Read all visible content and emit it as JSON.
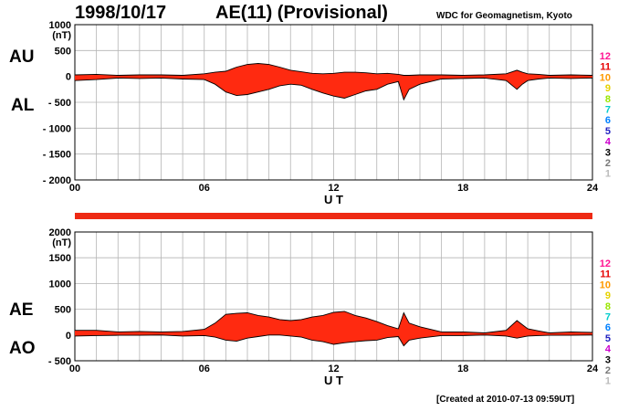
{
  "header": {
    "date": "1998/10/17",
    "title": "AE(11) (Provisional)",
    "source": "WDC for Geomagnetism, Kyoto"
  },
  "footer": {
    "created": "[Created at 2010-07-13 09:59UT]"
  },
  "colors": {
    "fill": "#ff2a10",
    "bar": "#ee2a14",
    "grid": "#b4b4b4",
    "outline": "#000000"
  },
  "legend_numbers": [
    {
      "label": "12",
      "color": "#ff1493"
    },
    {
      "label": "11",
      "color": "#e60000"
    },
    {
      "label": "10",
      "color": "#ff9900"
    },
    {
      "label": "9",
      "color": "#e6d200"
    },
    {
      "label": "8",
      "color": "#99e600"
    },
    {
      "label": "7",
      "color": "#00cccc"
    },
    {
      "label": "6",
      "color": "#0080ff"
    },
    {
      "label": "5",
      "color": "#2020c0"
    },
    {
      "label": "4",
      "color": "#cc00cc"
    },
    {
      "label": "3",
      "color": "#000000"
    },
    {
      "label": "2",
      "color": "#777777"
    },
    {
      "label": "1",
      "color": "#bbbbbb"
    }
  ],
  "chart_data": [
    {
      "type": "area",
      "panel": "top",
      "side_labels": [
        "AU",
        "AL"
      ],
      "xlabel": "U T",
      "ylabel_unit": "(nT)",
      "xlim": [
        0,
        24
      ],
      "xticks": [
        0,
        6,
        12,
        18,
        24
      ],
      "xtick_labels": [
        "00",
        "06",
        "12",
        "18",
        "24"
      ],
      "ylim": [
        -2000,
        1000
      ],
      "yticks": [
        1000,
        500,
        0,
        -500,
        -1000,
        -1500,
        -2000
      ],
      "ytick_labels": [
        "1000",
        "500",
        "0",
        "- 500",
        "- 1000",
        "- 1500",
        "- 2000"
      ],
      "grid": true,
      "x": [
        0,
        1,
        2,
        3,
        4,
        5,
        6,
        6.5,
        7,
        7.5,
        8,
        8.5,
        9,
        9.5,
        10,
        10.5,
        11,
        11.5,
        12,
        12.5,
        13,
        13.5,
        14,
        14.5,
        15,
        15.25,
        15.5,
        16,
        17,
        18,
        19,
        20,
        20.5,
        20.75,
        21,
        21.5,
        22,
        23,
        24
      ],
      "series": [
        {
          "name": "AU",
          "values": [
            30,
            40,
            20,
            30,
            30,
            20,
            50,
            80,
            100,
            180,
            230,
            250,
            230,
            180,
            120,
            90,
            60,
            50,
            60,
            80,
            80,
            70,
            50,
            60,
            40,
            20,
            20,
            30,
            30,
            20,
            30,
            50,
            120,
            80,
            50,
            40,
            20,
            30,
            20
          ]
        },
        {
          "name": "AL",
          "values": [
            -80,
            -60,
            -30,
            -40,
            -30,
            -50,
            -60,
            -150,
            -300,
            -370,
            -350,
            -300,
            -250,
            -180,
            -150,
            -170,
            -250,
            -320,
            -380,
            -420,
            -350,
            -280,
            -250,
            -150,
            -100,
            -450,
            -250,
            -150,
            -50,
            -40,
            -30,
            -80,
            -250,
            -150,
            -80,
            -50,
            -30,
            -40,
            -30
          ]
        }
      ]
    },
    {
      "type": "area",
      "panel": "bottom",
      "side_labels": [
        "AE",
        "AO"
      ],
      "xlabel": "U T",
      "ylabel_unit": "(nT)",
      "xlim": [
        0,
        24
      ],
      "xticks": [
        0,
        6,
        12,
        18,
        24
      ],
      "xtick_labels": [
        "00",
        "06",
        "12",
        "18",
        "24"
      ],
      "ylim": [
        -500,
        2000
      ],
      "yticks": [
        2000,
        1500,
        1000,
        500,
        0,
        -500
      ],
      "ytick_labels": [
        "2000",
        "1500",
        "1000",
        "500",
        "0",
        "- 500"
      ],
      "grid": true,
      "x": [
        0,
        1,
        2,
        3,
        4,
        5,
        6,
        6.5,
        7,
        7.5,
        8,
        8.5,
        9,
        9.5,
        10,
        10.5,
        11,
        11.5,
        12,
        12.5,
        13,
        13.5,
        14,
        14.5,
        15,
        15.25,
        15.5,
        16,
        17,
        18,
        19,
        20,
        20.5,
        20.75,
        21,
        21.5,
        22,
        23,
        24
      ],
      "series": [
        {
          "name": "AE",
          "values": [
            90,
            90,
            60,
            70,
            60,
            70,
            110,
            230,
            400,
            420,
            430,
            380,
            350,
            300,
            280,
            300,
            350,
            380,
            440,
            460,
            380,
            330,
            260,
            180,
            120,
            430,
            230,
            160,
            60,
            60,
            40,
            90,
            280,
            200,
            120,
            80,
            40,
            60,
            50
          ]
        },
        {
          "name": "AO",
          "values": [
            -20,
            -10,
            -5,
            -5,
            0,
            -20,
            -10,
            -40,
            -100,
            -120,
            -60,
            -30,
            0,
            0,
            -20,
            -40,
            -100,
            -130,
            -180,
            -150,
            -130,
            -110,
            -100,
            -50,
            -30,
            -210,
            -100,
            -60,
            -10,
            -10,
            0,
            -20,
            -60,
            -40,
            -20,
            -10,
            -5,
            -5,
            0
          ]
        }
      ]
    }
  ]
}
